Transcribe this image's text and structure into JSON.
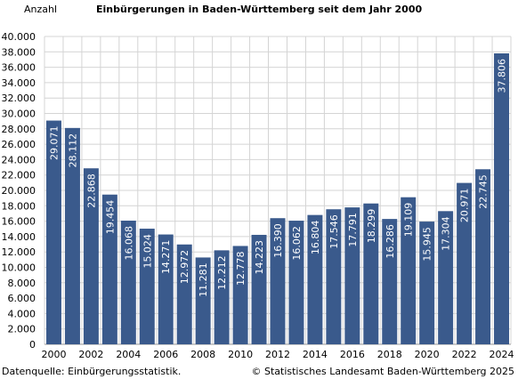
{
  "chart_data": {
    "type": "bar",
    "title": "Einbürgerungen in Baden-Württemberg seit dem Jahr 2000",
    "ylabel": "Anzahl",
    "ylim": [
      0,
      40000
    ],
    "ytick_step": 2000,
    "grid": true,
    "bar_color": "#3a5a8c",
    "categories": [
      "2000",
      "2001",
      "2002",
      "2003",
      "2004",
      "2005",
      "2006",
      "2007",
      "2008",
      "2009",
      "2010",
      "2011",
      "2012",
      "2013",
      "2014",
      "2015",
      "2016",
      "2017",
      "2018",
      "2019",
      "2020",
      "2021",
      "2022",
      "2023",
      "2024"
    ],
    "values": [
      29071,
      28112,
      22868,
      19454,
      16068,
      15024,
      14271,
      12972,
      11281,
      12212,
      12778,
      14223,
      16390,
      16062,
      16804,
      17546,
      17791,
      18299,
      16286,
      19109,
      15945,
      17304,
      20971,
      22745,
      37806
    ],
    "value_labels": [
      "29.071",
      "28.112",
      "22.868",
      "19.454",
      "16.068",
      "15.024",
      "14.271",
      "12.972",
      "11.281",
      "12.212",
      "12.778",
      "14.223",
      "16.390",
      "16.062",
      "16.804",
      "17.546",
      "17.791",
      "18.299",
      "16.286",
      "19.109",
      "15.945",
      "17.304",
      "20.971",
      "22.745",
      "37.806"
    ],
    "x_tick_labels": [
      "2000",
      "",
      "2002",
      "",
      "2004",
      "",
      "2006",
      "",
      "2008",
      "",
      "2010",
      "",
      "2012",
      "",
      "2014",
      "",
      "2016",
      "",
      "2018",
      "",
      "2020",
      "",
      "2022",
      "",
      "2024"
    ],
    "y_tick_labels": [
      "0",
      "2.000",
      "4.000",
      "6.000",
      "8.000",
      "10.000",
      "12.000",
      "14.000",
      "16.000",
      "18.000",
      "20.000",
      "22.000",
      "24.000",
      "26.000",
      "28.000",
      "30.000",
      "32.000",
      "34.000",
      "36.000",
      "38.000",
      "40.000"
    ]
  },
  "footer": {
    "source": "Datenquelle: Einbürgerungsstatistik.",
    "copyright": "© Statistisches Landesamt Baden-Württemberg 2025"
  }
}
